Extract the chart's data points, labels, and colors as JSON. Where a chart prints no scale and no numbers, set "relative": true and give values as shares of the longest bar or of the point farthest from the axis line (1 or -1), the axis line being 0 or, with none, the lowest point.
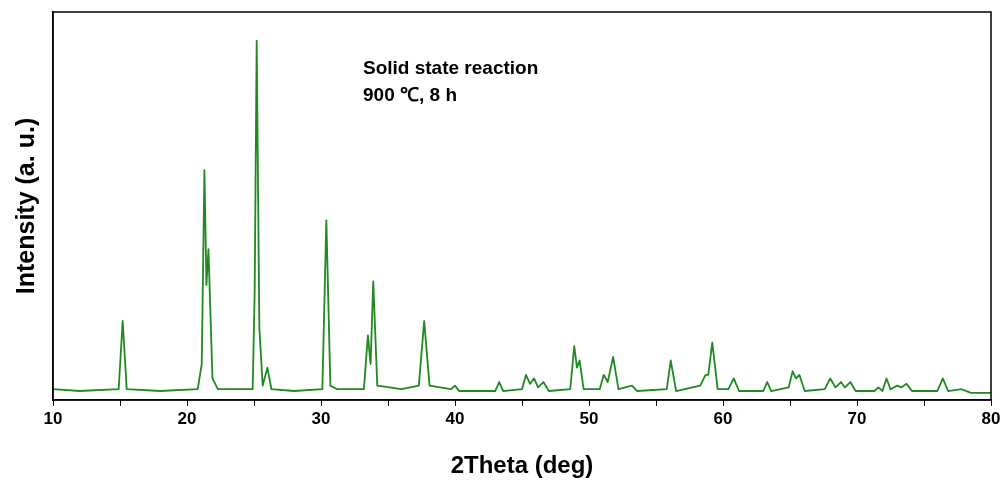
{
  "chart_data": {
    "type": "line",
    "relative": true,
    "xlabel": "2Theta (deg)",
    "ylabel": "Intensity (a. u.)",
    "annotations": [
      "Solid state reaction",
      "900 ℃, 8 h"
    ],
    "xlim": [
      10,
      80
    ],
    "xticks": [
      10,
      {
        "value": 15,
        "label": null
      },
      20,
      {
        "value": 25,
        "label": null
      },
      30,
      {
        "value": 35,
        "label": null
      },
      40,
      {
        "value": 45,
        "label": null
      },
      50,
      {
        "value": 55,
        "label": null
      },
      60,
      {
        "value": 65,
        "label": null
      },
      70,
      {
        "value": 75,
        "label": null
      },
      80
    ],
    "marker": "none",
    "grid": false,
    "legend": false,
    "x": [
      10,
      12,
      14.9,
      15.2,
      15.5,
      18,
      20.8,
      21.1,
      21.3,
      21.45,
      21.6,
      21.9,
      22.3,
      24.9,
      25.05,
      25.2,
      25.4,
      25.65,
      26.0,
      26.3,
      28,
      30.1,
      30.4,
      30.7,
      31.2,
      33.2,
      33.5,
      33.7,
      33.9,
      34.2,
      36,
      37.3,
      37.7,
      38.1,
      39.7,
      40.0,
      40.3,
      43.0,
      43.3,
      43.6,
      45.0,
      45.3,
      45.6,
      45.9,
      46.2,
      46.6,
      47.0,
      48.6,
      48.9,
      49.1,
      49.3,
      49.6,
      50.8,
      51.1,
      51.4,
      51.8,
      52.2,
      53.2,
      53.6,
      55.8,
      56.1,
      56.5,
      58.3,
      58.7,
      58.9,
      59.2,
      59.6,
      60.4,
      60.8,
      61.2,
      63.0,
      63.3,
      63.6,
      64.9,
      65.2,
      65.45,
      65.7,
      66.1,
      67.6,
      68.0,
      68.4,
      68.8,
      69.1,
      69.5,
      69.9,
      71.3,
      71.6,
      71.9,
      72.2,
      72.5,
      73.0,
      73.3,
      73.7,
      74.1,
      76.0,
      76.4,
      76.8,
      77.8,
      78.5,
      80
    ],
    "series": [
      {
        "color": "#1f8a1f",
        "values": [
          0.03,
          0.025,
          0.03,
          0.22,
          0.03,
          0.025,
          0.03,
          0.1,
          0.64,
          0.32,
          0.42,
          0.06,
          0.03,
          0.03,
          0.3,
          1.0,
          0.2,
          0.04,
          0.09,
          0.03,
          0.025,
          0.03,
          0.5,
          0.04,
          0.03,
          0.03,
          0.18,
          0.1,
          0.33,
          0.04,
          0.03,
          0.04,
          0.22,
          0.04,
          0.03,
          0.04,
          0.025,
          0.025,
          0.05,
          0.025,
          0.03,
          0.07,
          0.045,
          0.06,
          0.035,
          0.05,
          0.025,
          0.03,
          0.15,
          0.09,
          0.11,
          0.03,
          0.03,
          0.07,
          0.05,
          0.12,
          0.03,
          0.04,
          0.025,
          0.03,
          0.11,
          0.025,
          0.04,
          0.07,
          0.07,
          0.16,
          0.03,
          0.03,
          0.06,
          0.025,
          0.025,
          0.05,
          0.025,
          0.035,
          0.08,
          0.06,
          0.07,
          0.025,
          0.03,
          0.06,
          0.035,
          0.05,
          0.035,
          0.05,
          0.025,
          0.025,
          0.035,
          0.025,
          0.06,
          0.03,
          0.04,
          0.035,
          0.045,
          0.025,
          0.025,
          0.06,
          0.025,
          0.03,
          0.02,
          0.02
        ]
      }
    ]
  }
}
